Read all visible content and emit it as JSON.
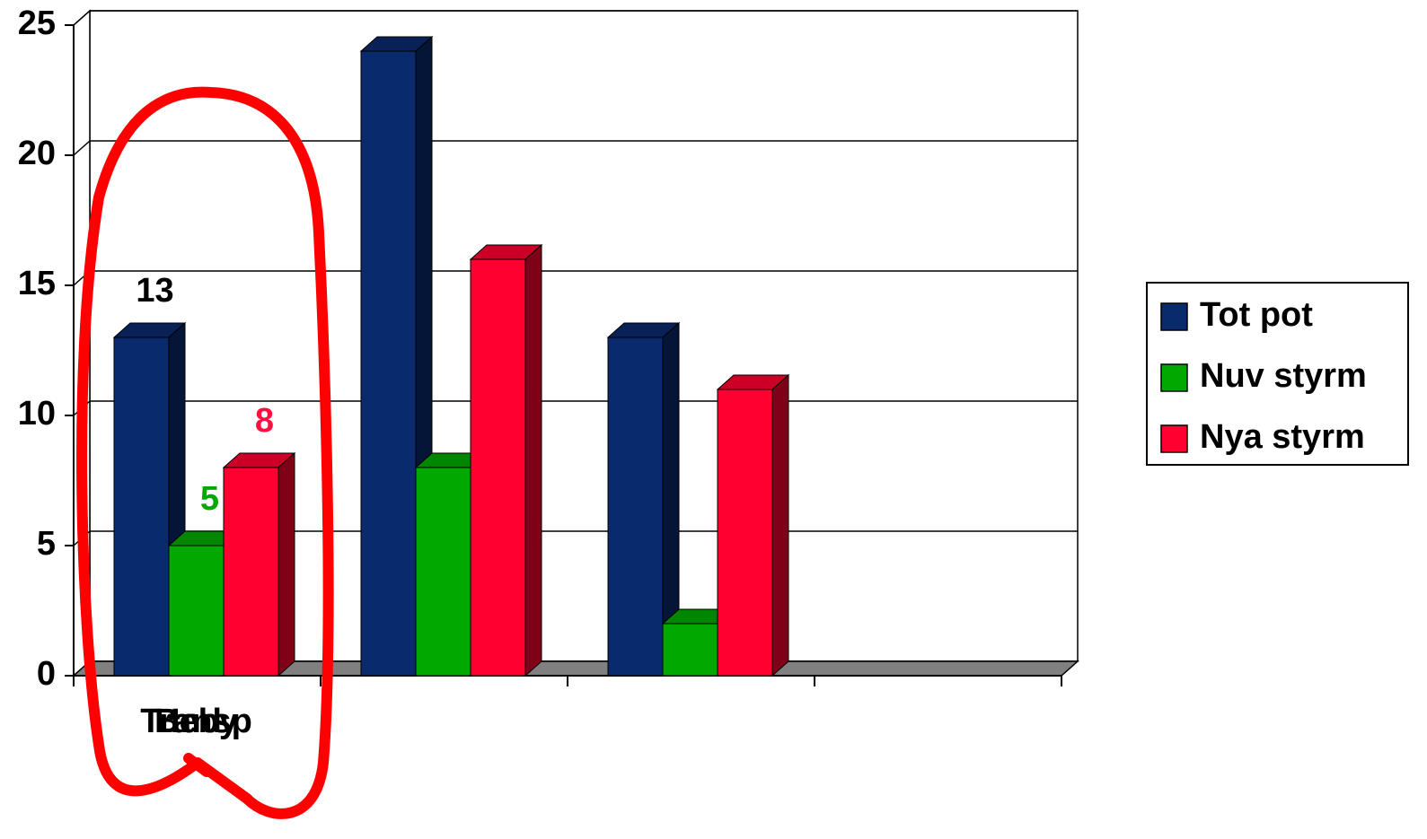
{
  "chart_data": {
    "type": "bar3d",
    "categories": [
      "Transp",
      "Beby",
      "Ind",
      null
    ],
    "series": [
      {
        "name": "Tot pot",
        "color": "#0a2a6e",
        "values": [
          13,
          24,
          13,
          null
        ],
        "value_labels": [
          "13",
          null,
          null,
          null
        ],
        "label_color": "#000000"
      },
      {
        "name": "Nuv styrm",
        "color": "#00a800",
        "values": [
          5,
          8,
          2,
          null
        ],
        "value_labels": [
          "5",
          null,
          null,
          null
        ],
        "label_color": "#00a800"
      },
      {
        "name": "Nya styrm",
        "color": "#ff0030",
        "values": [
          8,
          16,
          11,
          null
        ],
        "value_labels": [
          "8",
          null,
          null,
          null
        ],
        "label_color": "#ff1040"
      }
    ],
    "ylim": [
      0,
      25
    ],
    "yticks": [
      0,
      5,
      10,
      15,
      20,
      25
    ],
    "grid": true,
    "legend": "right"
  }
}
